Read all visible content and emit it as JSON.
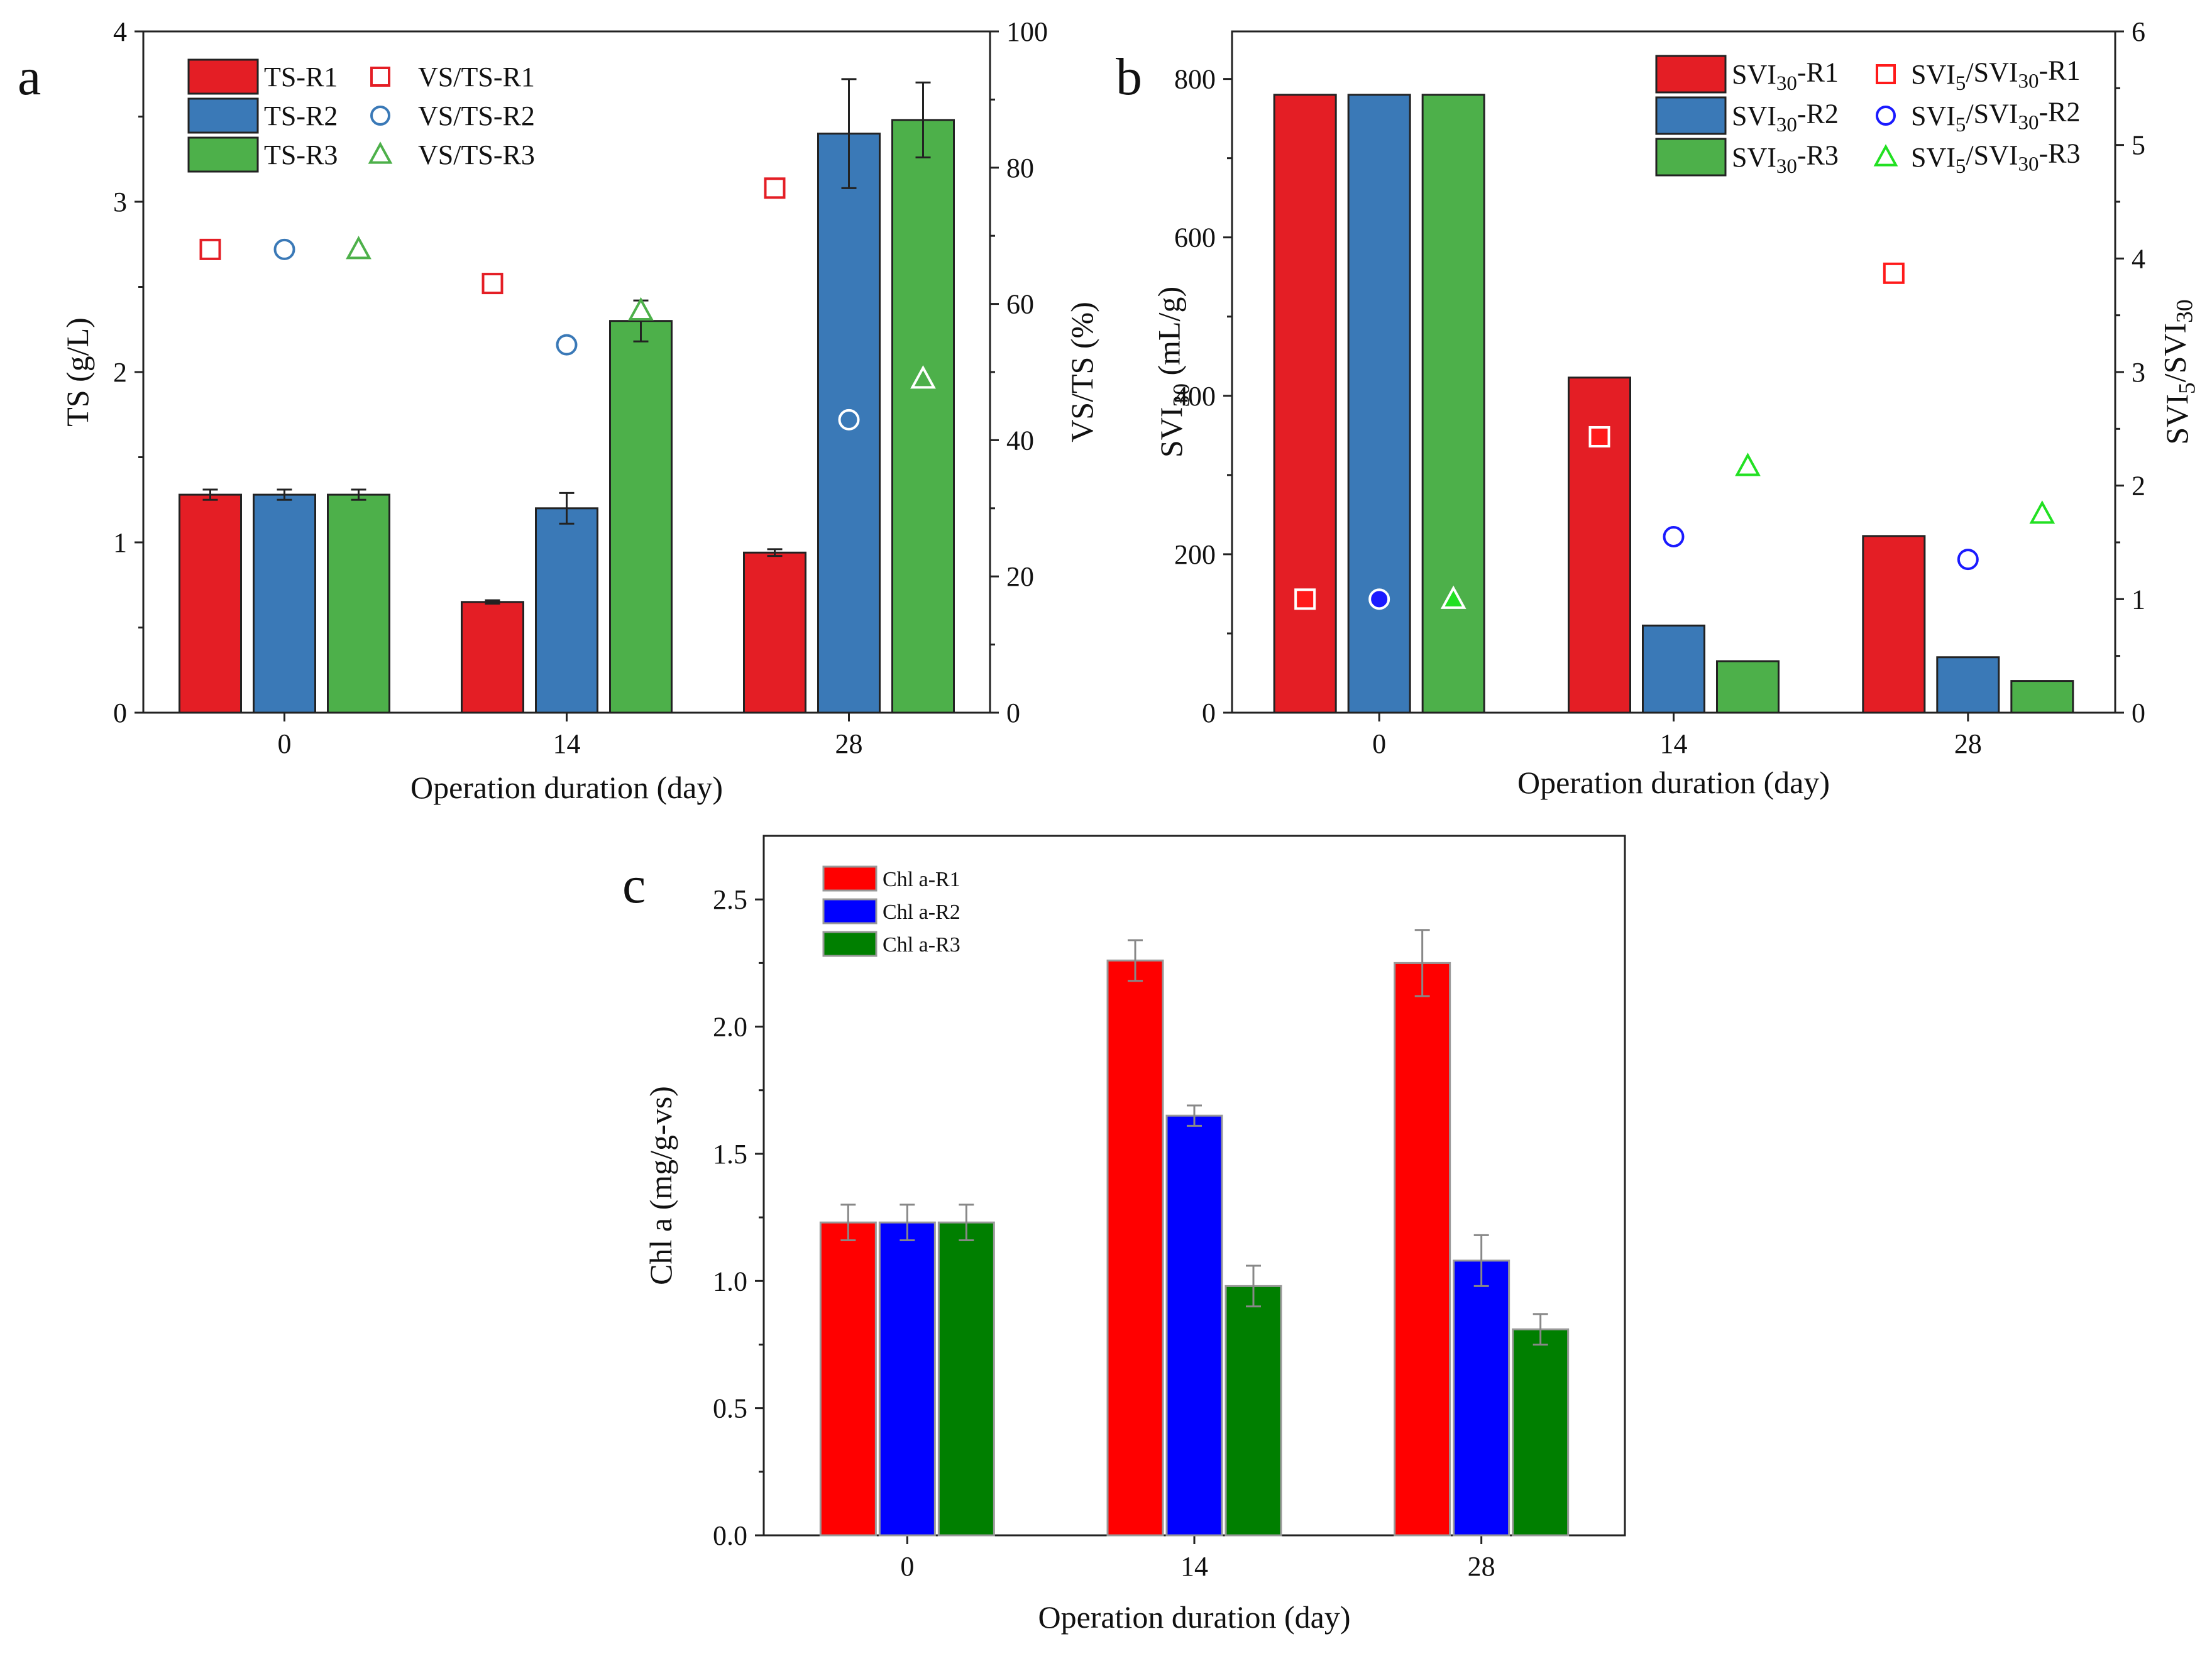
{
  "figure": {
    "panels": [
      "a",
      "b",
      "c"
    ]
  },
  "chart_data": [
    {
      "panel": "a",
      "type": "bar",
      "categories": [
        "0",
        "14",
        "28"
      ],
      "xlabel": "Operation duration (day)",
      "ylabel": "TS (g/L)",
      "ylim": [
        0,
        4
      ],
      "yticks": [
        "0",
        "1",
        "2",
        "3",
        "4"
      ],
      "y2label": "VS/TS (%)",
      "y2lim": [
        0,
        100
      ],
      "y2ticks": [
        "0",
        "20",
        "40",
        "60",
        "80",
        "100"
      ],
      "series": [
        {
          "name": "TS-R1",
          "color": "#e41e25",
          "values": [
            1.28,
            0.65,
            0.94
          ],
          "errors": [
            0.03,
            0.01,
            0.02
          ]
        },
        {
          "name": "TS-R2",
          "color": "#3a79b7",
          "values": [
            1.28,
            1.2,
            3.4
          ],
          "errors": [
            0.03,
            0.09,
            0.32
          ]
        },
        {
          "name": "TS-R3",
          "color": "#4db04a",
          "values": [
            1.28,
            2.3,
            3.48
          ],
          "errors": [
            0.03,
            0.12,
            0.22
          ]
        }
      ],
      "scatter_series": [
        {
          "name": "VS/TS-R1",
          "marker": "square",
          "color": "#e41e25",
          "values": [
            68,
            63,
            77
          ]
        },
        {
          "name": "VS/TS-R2",
          "marker": "circle",
          "color": "#3a79b7",
          "values": [
            68,
            54,
            43
          ]
        },
        {
          "name": "VS/TS-R3",
          "marker": "triangle",
          "color": "#4db04a",
          "values": [
            68,
            59,
            49
          ]
        }
      ]
    },
    {
      "panel": "b",
      "type": "bar",
      "categories": [
        "0",
        "14",
        "28"
      ],
      "xlabel": "Operation duration (day)",
      "ylabel_main": "SVI",
      "ylabel_sub": "30",
      "ylabel_tail": " (mL/g)",
      "ylim": [
        0,
        860
      ],
      "yticks": [
        "0",
        "200",
        "400",
        "600",
        "800"
      ],
      "y2label_parts": [
        "SVI",
        "5",
        "/SVI",
        "30"
      ],
      "y2lim": [
        0,
        6
      ],
      "y2ticks": [
        "0",
        "1",
        "2",
        "3",
        "4",
        "5",
        "6"
      ],
      "series": [
        {
          "name": "SVI30-R1",
          "label_main": "SVI",
          "label_sub": "30",
          "label_tail": "-R1",
          "color": "#e41e25",
          "values": [
            780,
            423,
            223
          ]
        },
        {
          "name": "SVI30-R2",
          "label_main": "SVI",
          "label_sub": "30",
          "label_tail": "-R2",
          "color": "#3a79b7",
          "values": [
            780,
            110,
            70
          ]
        },
        {
          "name": "SVI30-R3",
          "label_main": "SVI",
          "label_sub": "30",
          "label_tail": "-R3",
          "color": "#4db04a",
          "values": [
            780,
            65,
            40
          ]
        }
      ],
      "scatter_series": [
        {
          "name": "SVI5/SVI30-R1",
          "label_parts": [
            "SVI",
            "5",
            "/SVI",
            "30",
            "-R1"
          ],
          "marker": "square",
          "color": "#ff1a1a",
          "values": [
            1.0,
            2.43,
            3.87
          ]
        },
        {
          "name": "SVI5/SVI30-R2",
          "label_parts": [
            "SVI",
            "5",
            "/SVI",
            "30",
            "-R2"
          ],
          "marker": "circle",
          "color": "#1a1aff",
          "values": [
            1.0,
            1.55,
            1.35
          ]
        },
        {
          "name": "SVI5/SVI30-R3",
          "label_parts": [
            "SVI",
            "5",
            "/SVI",
            "30",
            "-R3"
          ],
          "marker": "triangle",
          "color": "#22e022",
          "values": [
            1.0,
            2.17,
            1.75
          ]
        }
      ]
    },
    {
      "panel": "c",
      "type": "bar",
      "categories": [
        "0",
        "14",
        "28"
      ],
      "xlabel": "Operation duration (day)",
      "ylabel": "Chl a (mg/g-vs)",
      "ylim": [
        0,
        2.75
      ],
      "yticks": [
        "0.0",
        "0.5",
        "1.0",
        "1.5",
        "2.0",
        "2.5"
      ],
      "series": [
        {
          "name": "Chl a-R1",
          "color": "#ff0000",
          "values": [
            1.23,
            2.26,
            2.25
          ],
          "errors": [
            0.07,
            0.08,
            0.13
          ]
        },
        {
          "name": "Chl a-R2",
          "color": "#0000ff",
          "values": [
            1.23,
            1.65,
            1.08
          ],
          "errors": [
            0.07,
            0.04,
            0.1
          ]
        },
        {
          "name": "Chl a-R3",
          "color": "#007f00",
          "values": [
            1.23,
            0.98,
            0.81
          ],
          "errors": [
            0.07,
            0.08,
            0.06
          ]
        }
      ]
    }
  ]
}
